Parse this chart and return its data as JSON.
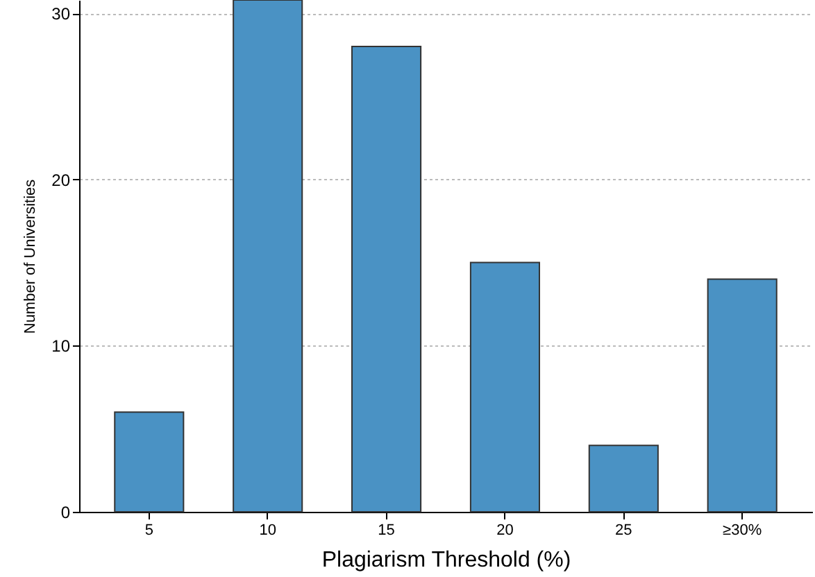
{
  "chart_data": {
    "type": "bar",
    "xlabel": "Plagiarism Threshold (%)",
    "ylabel": "Number of Universities",
    "categories": [
      "5",
      "10",
      "15",
      "20",
      "25",
      "≥30%"
    ],
    "values": [
      6,
      30.8,
      28,
      15,
      4,
      14
    ],
    "color": "#4a92c4",
    "ylim": [
      0,
      30.8
    ],
    "yticks": [
      0,
      10,
      20,
      30
    ],
    "grid": "y"
  }
}
